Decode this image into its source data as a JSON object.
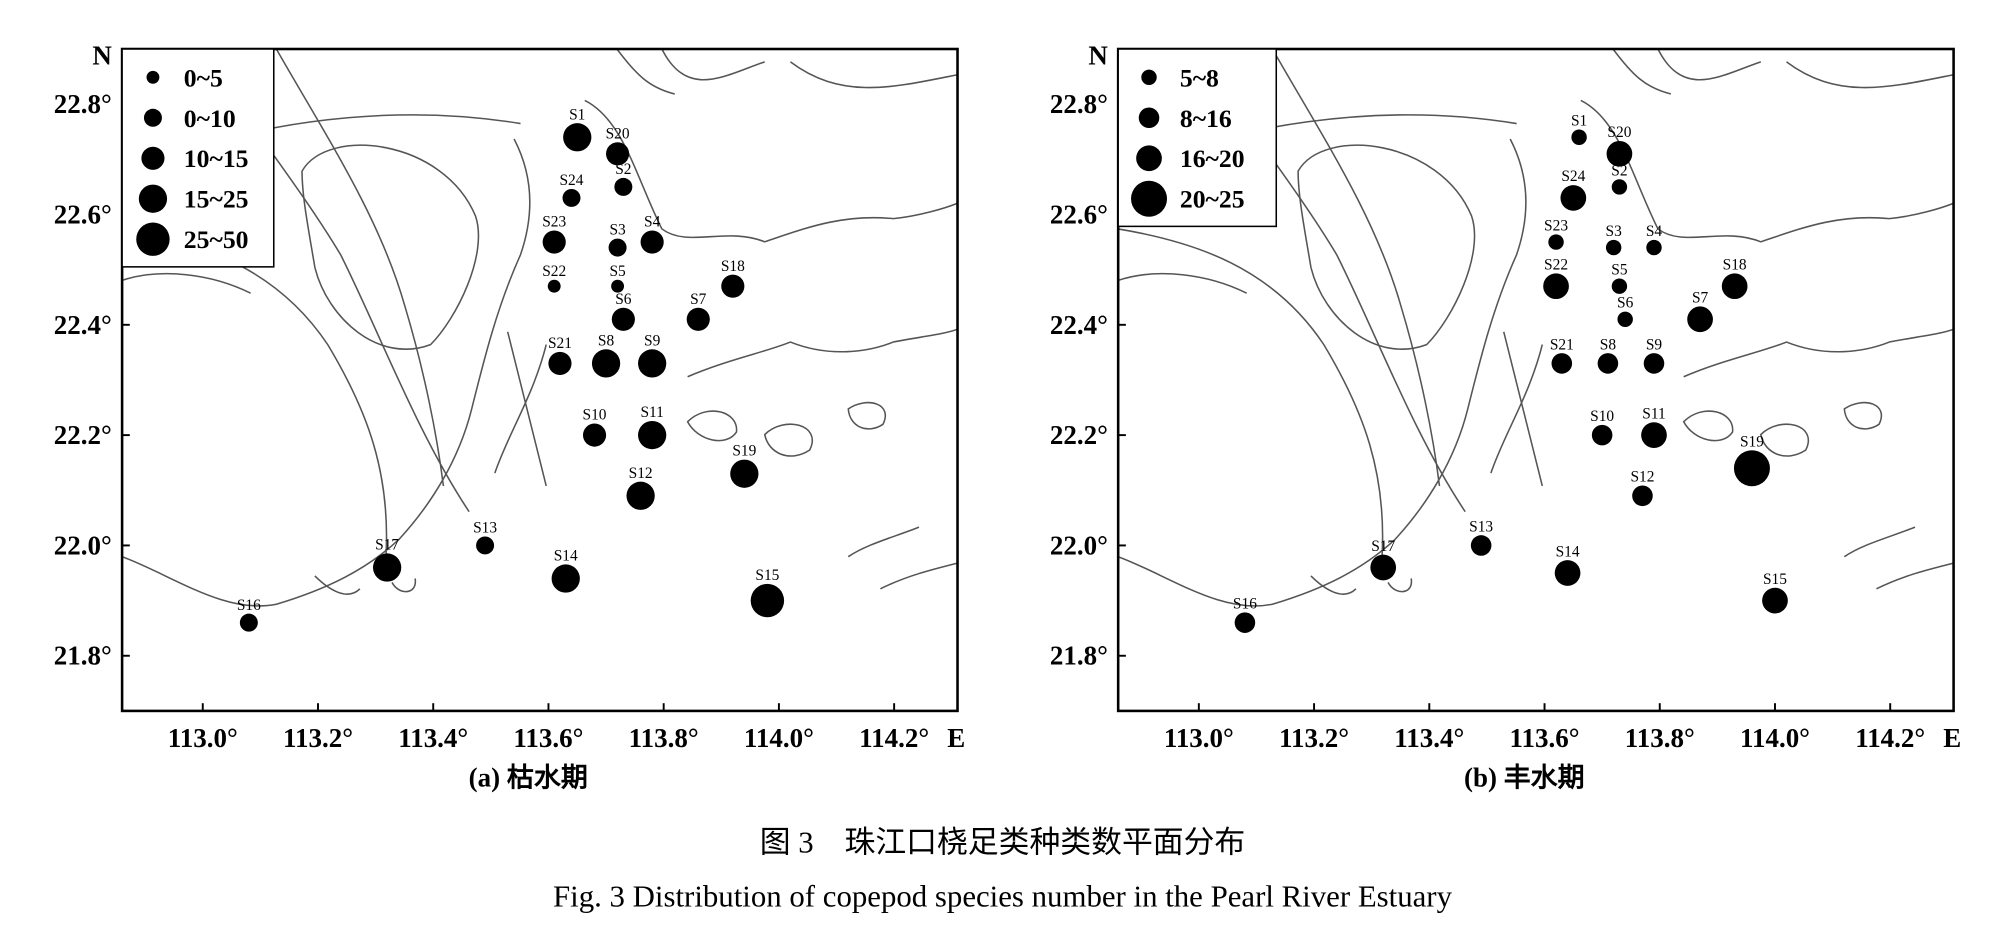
{
  "panels": [
    {
      "caption": "(a) 枯水期",
      "north": "N",
      "east": "E",
      "xlim": [
        112.86,
        114.31
      ],
      "ylim": [
        21.7,
        22.9
      ],
      "xticks": [
        {
          "value": 113.0,
          "label": "113.0°"
        },
        {
          "value": 113.2,
          "label": "113.2°"
        },
        {
          "value": 113.4,
          "label": "113.4°"
        },
        {
          "value": 113.6,
          "label": "113.6°"
        },
        {
          "value": 113.8,
          "label": "113.8°"
        },
        {
          "value": 114.0,
          "label": "114.0°"
        },
        {
          "value": 114.2,
          "label": "114.2°"
        }
      ],
      "yticks": [
        {
          "value": 21.8,
          "label": "21.8°"
        },
        {
          "value": 22.0,
          "label": "22.0°"
        },
        {
          "value": 22.2,
          "label": "22.2°"
        },
        {
          "value": 22.4,
          "label": "22.4°"
        },
        {
          "value": 22.6,
          "label": "22.6°"
        },
        {
          "value": 22.8,
          "label": "22.8°"
        }
      ],
      "legend": [
        "0~5",
        "0~10",
        "10~15",
        "15~25",
        "25~50"
      ],
      "stations": [
        {
          "label": "S1",
          "lon": 113.65,
          "lat": 22.74,
          "size": 3
        },
        {
          "label": "S20",
          "lon": 113.72,
          "lat": 22.71,
          "size": 2
        },
        {
          "label": "S2",
          "lon": 113.73,
          "lat": 22.65,
          "size": 1
        },
        {
          "label": "S24",
          "lon": 113.64,
          "lat": 22.63,
          "size": 1
        },
        {
          "label": "S23",
          "lon": 113.61,
          "lat": 22.55,
          "size": 2
        },
        {
          "label": "S3",
          "lon": 113.72,
          "lat": 22.54,
          "size": 1
        },
        {
          "label": "S4",
          "lon": 113.78,
          "lat": 22.55,
          "size": 2
        },
        {
          "label": "S22",
          "lon": 113.61,
          "lat": 22.47,
          "size": 0
        },
        {
          "label": "S5",
          "lon": 113.72,
          "lat": 22.47,
          "size": 0
        },
        {
          "label": "S18",
          "lon": 113.92,
          "lat": 22.47,
          "size": 2
        },
        {
          "label": "S6",
          "lon": 113.73,
          "lat": 22.41,
          "size": 2
        },
        {
          "label": "S7",
          "lon": 113.86,
          "lat": 22.41,
          "size": 2
        },
        {
          "label": "S21",
          "lon": 113.62,
          "lat": 22.33,
          "size": 2
        },
        {
          "label": "S8",
          "lon": 113.7,
          "lat": 22.33,
          "size": 3
        },
        {
          "label": "S9",
          "lon": 113.78,
          "lat": 22.33,
          "size": 3
        },
        {
          "label": "S10",
          "lon": 113.68,
          "lat": 22.2,
          "size": 2
        },
        {
          "label": "S11",
          "lon": 113.78,
          "lat": 22.2,
          "size": 3
        },
        {
          "label": "S19",
          "lon": 113.94,
          "lat": 22.13,
          "size": 3
        },
        {
          "label": "S12",
          "lon": 113.76,
          "lat": 22.09,
          "size": 3
        },
        {
          "label": "S13",
          "lon": 113.49,
          "lat": 22.0,
          "size": 1
        },
        {
          "label": "S17",
          "lon": 113.32,
          "lat": 21.96,
          "size": 3
        },
        {
          "label": "S14",
          "lon": 113.63,
          "lat": 21.94,
          "size": 3
        },
        {
          "label": "S15",
          "lon": 113.98,
          "lat": 21.9,
          "size": 4
        },
        {
          "label": "S16",
          "lon": 113.08,
          "lat": 21.86,
          "size": 1
        }
      ]
    },
    {
      "caption": "(b) 丰水期",
      "north": "N",
      "east": "E",
      "xlim": [
        112.86,
        114.31
      ],
      "ylim": [
        21.7,
        22.9
      ],
      "xticks": [
        {
          "value": 113.0,
          "label": "113.0°"
        },
        {
          "value": 113.2,
          "label": "113.2°"
        },
        {
          "value": 113.4,
          "label": "113.4°"
        },
        {
          "value": 113.6,
          "label": "113.6°"
        },
        {
          "value": 113.8,
          "label": "113.8°"
        },
        {
          "value": 114.0,
          "label": "114.0°"
        },
        {
          "value": 114.2,
          "label": "114.2°"
        }
      ],
      "yticks": [
        {
          "value": 21.8,
          "label": "21.8°"
        },
        {
          "value": 22.0,
          "label": "22.0°"
        },
        {
          "value": 22.2,
          "label": "22.2°"
        },
        {
          "value": 22.4,
          "label": "22.4°"
        },
        {
          "value": 22.6,
          "label": "22.6°"
        },
        {
          "value": 22.8,
          "label": "22.8°"
        }
      ],
      "legend": [
        "5~8",
        "8~16",
        "16~20",
        "20~25"
      ],
      "stations": [
        {
          "label": "S1",
          "lon": 113.66,
          "lat": 22.74,
          "size": 0
        },
        {
          "label": "S20",
          "lon": 113.73,
          "lat": 22.71,
          "size": 2
        },
        {
          "label": "S2",
          "lon": 113.73,
          "lat": 22.65,
          "size": 0
        },
        {
          "label": "S24",
          "lon": 113.65,
          "lat": 22.63,
          "size": 2
        },
        {
          "label": "S23",
          "lon": 113.62,
          "lat": 22.55,
          "size": 0
        },
        {
          "label": "S3",
          "lon": 113.72,
          "lat": 22.54,
          "size": 0
        },
        {
          "label": "S4",
          "lon": 113.79,
          "lat": 22.54,
          "size": 0
        },
        {
          "label": "S22",
          "lon": 113.62,
          "lat": 22.47,
          "size": 2
        },
        {
          "label": "S5",
          "lon": 113.73,
          "lat": 22.47,
          "size": 0
        },
        {
          "label": "S18",
          "lon": 113.93,
          "lat": 22.47,
          "size": 2
        },
        {
          "label": "S6",
          "lon": 113.74,
          "lat": 22.41,
          "size": 0
        },
        {
          "label": "S7",
          "lon": 113.87,
          "lat": 22.41,
          "size": 2
        },
        {
          "label": "S21",
          "lon": 113.63,
          "lat": 22.33,
          "size": 1
        },
        {
          "label": "S8",
          "lon": 113.71,
          "lat": 22.33,
          "size": 1
        },
        {
          "label": "S9",
          "lon": 113.79,
          "lat": 22.33,
          "size": 1
        },
        {
          "label": "S10",
          "lon": 113.7,
          "lat": 22.2,
          "size": 1
        },
        {
          "label": "S11",
          "lon": 113.79,
          "lat": 22.2,
          "size": 2
        },
        {
          "label": "S19",
          "lon": 113.96,
          "lat": 22.14,
          "size": 3
        },
        {
          "label": "S12",
          "lon": 113.77,
          "lat": 22.09,
          "size": 1
        },
        {
          "label": "S13",
          "lon": 113.49,
          "lat": 22.0,
          "size": 1
        },
        {
          "label": "S17",
          "lon": 113.32,
          "lat": 21.96,
          "size": 2
        },
        {
          "label": "S14",
          "lon": 113.64,
          "lat": 21.95,
          "size": 2
        },
        {
          "label": "S15",
          "lon": 114.0,
          "lat": 21.9,
          "size": 2
        },
        {
          "label": "S16",
          "lon": 113.08,
          "lat": 21.86,
          "size": 1
        }
      ]
    }
  ],
  "figure_caption": {
    "zh": "图 3　珠江口桡足类种类数平面分布",
    "en": "Fig. 3  Distribution of copepod species number in the Pearl River Estuary"
  }
}
